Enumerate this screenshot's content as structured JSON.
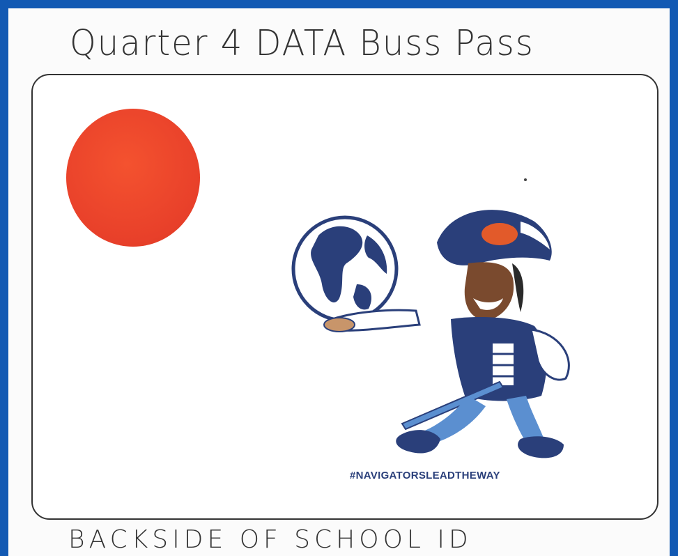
{
  "title": "Quarter 4 DATA Buss Pass",
  "footer": "BACKSIDE OF SCHOOL ID",
  "card": {
    "hashtag": "#NAVIGATORSLEADTHEWAY",
    "dot_color": "#e8402a",
    "mascot_icon": "navigator-pirate-holding-globe"
  },
  "colors": {
    "background": "#1259b3",
    "navy": "#2a3f7a",
    "sky": "#5b8fd0"
  }
}
